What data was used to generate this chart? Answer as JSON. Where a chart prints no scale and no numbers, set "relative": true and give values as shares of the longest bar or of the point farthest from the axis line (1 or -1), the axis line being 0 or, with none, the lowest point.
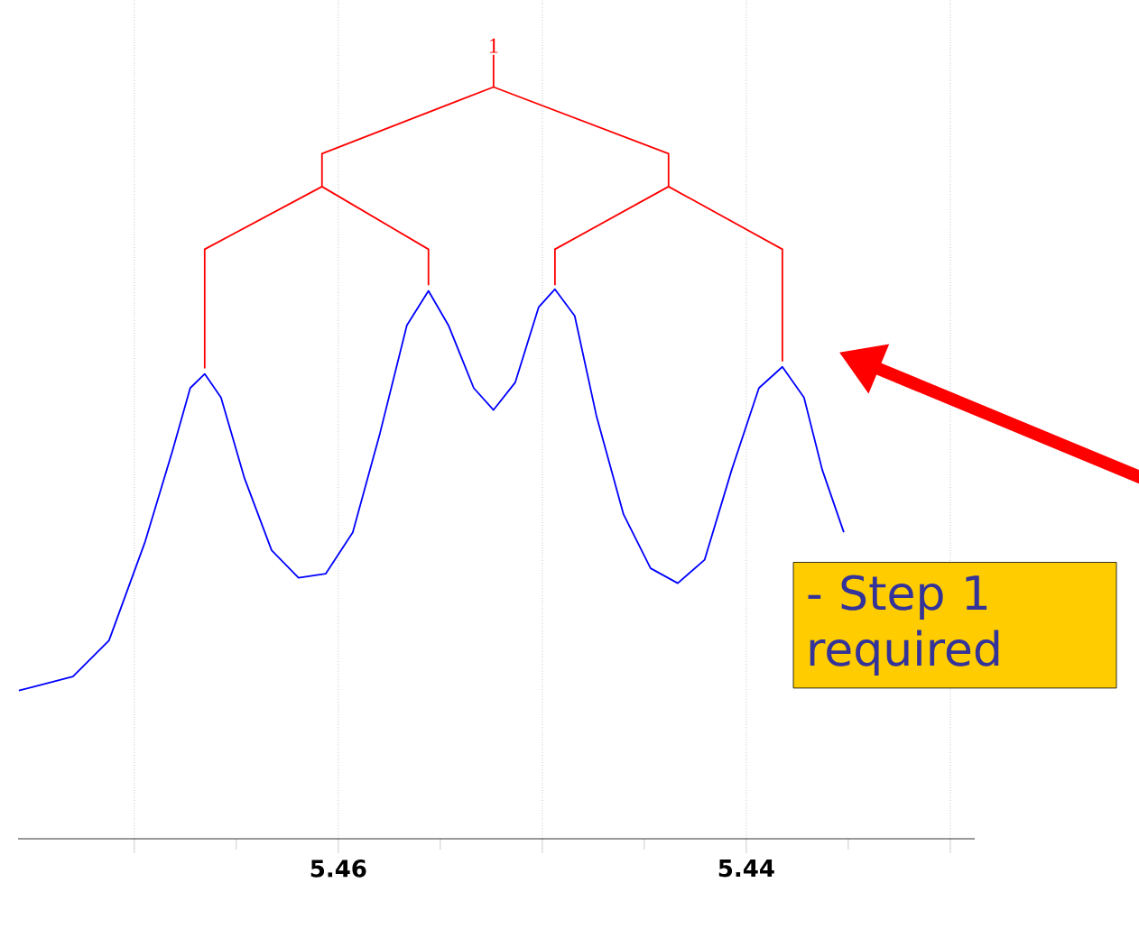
{
  "chart_data": {
    "type": "line",
    "relative": true,
    "xlim": [
      5.4757,
      5.4288
    ],
    "xticks": [
      {
        "value": 5.47,
        "label": null
      },
      5.46,
      {
        "value": 5.45,
        "label": null
      },
      5.44,
      {
        "value": 5.43,
        "label": null
      }
    ],
    "grid": "x",
    "marker": "none",
    "line_style": "solid",
    "series": [
      {
        "color": "#0000ff",
        "x": [
          5.47566,
          5.47301,
          5.47124,
          5.46947,
          5.46814,
          5.46726,
          5.46655,
          5.46575,
          5.4646,
          5.46327,
          5.46195,
          5.46062,
          5.45929,
          5.45796,
          5.45664,
          5.45558,
          5.4546,
          5.45336,
          5.45239,
          5.45133,
          5.45018,
          5.44938,
          5.44841,
          5.44735,
          5.44602,
          5.44469,
          5.44336,
          5.44204,
          5.44071,
          5.43938,
          5.43823,
          5.43717,
          5.43628,
          5.43522
        ],
        "values": [
          0.189,
          0.207,
          0.253,
          0.379,
          0.494,
          0.575,
          0.593,
          0.563,
          0.46,
          0.368,
          0.333,
          0.338,
          0.391,
          0.517,
          0.655,
          0.699,
          0.655,
          0.575,
          0.547,
          0.582,
          0.678,
          0.701,
          0.667,
          0.54,
          0.414,
          0.345,
          0.326,
          0.356,
          0.471,
          0.575,
          0.602,
          0.563,
          0.471,
          0.391
        ]
      },
      {
        "color": "#ff0000",
        "x": [
          5.45239,
          5.45239,
          null,
          5.4608,
          5.4608,
          5.45239,
          5.44381,
          5.44381,
          null,
          5.46655,
          5.46655,
          5.4608,
          5.45558,
          5.45558,
          null,
          5.44938,
          5.44938,
          5.44381,
          5.43823,
          5.43823
        ],
        "values": [
          1.0,
          0.959,
          null,
          0.832,
          0.874,
          0.959,
          0.874,
          0.832,
          null,
          0.6,
          0.752,
          0.832,
          0.752,
          0.706,
          null,
          0.706,
          0.752,
          0.832,
          0.752,
          0.609
        ]
      }
    ],
    "annotations": [
      {
        "text": "1",
        "x": 5.45239,
        "y": 1.0
      },
      "- Step 1 required"
    ]
  }
}
